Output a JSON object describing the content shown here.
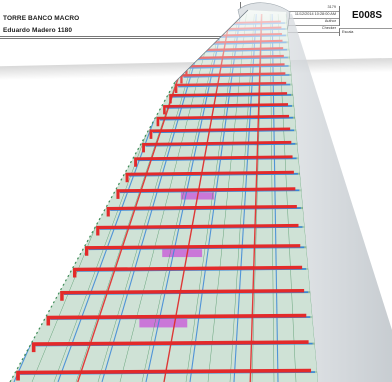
{
  "sheet": {
    "project_title": "TORRE BANCO MACRO",
    "project_address": "Eduardo Madero 1180",
    "title_block": {
      "rows": [
        {
          "label": "Nº Proyecto",
          "value": "3179"
        },
        {
          "label": "Fecha",
          "value": "11/12/2014 10:28:00 AM"
        },
        {
          "label": "Dibujo",
          "value": "Author"
        },
        {
          "label": "Comrpo",
          "value": "Checker"
        }
      ],
      "sheet_number": "E008S",
      "scale_label": "Escala"
    }
  },
  "model_view": {
    "icon": "bim-tower-3d-model",
    "colors": {
      "ducts": "#e32a2a",
      "pipes": "#3a86d8",
      "structure_grid": "#3d8a56",
      "equipment": "#c84ad8",
      "shell": "#c9ced3"
    }
  }
}
